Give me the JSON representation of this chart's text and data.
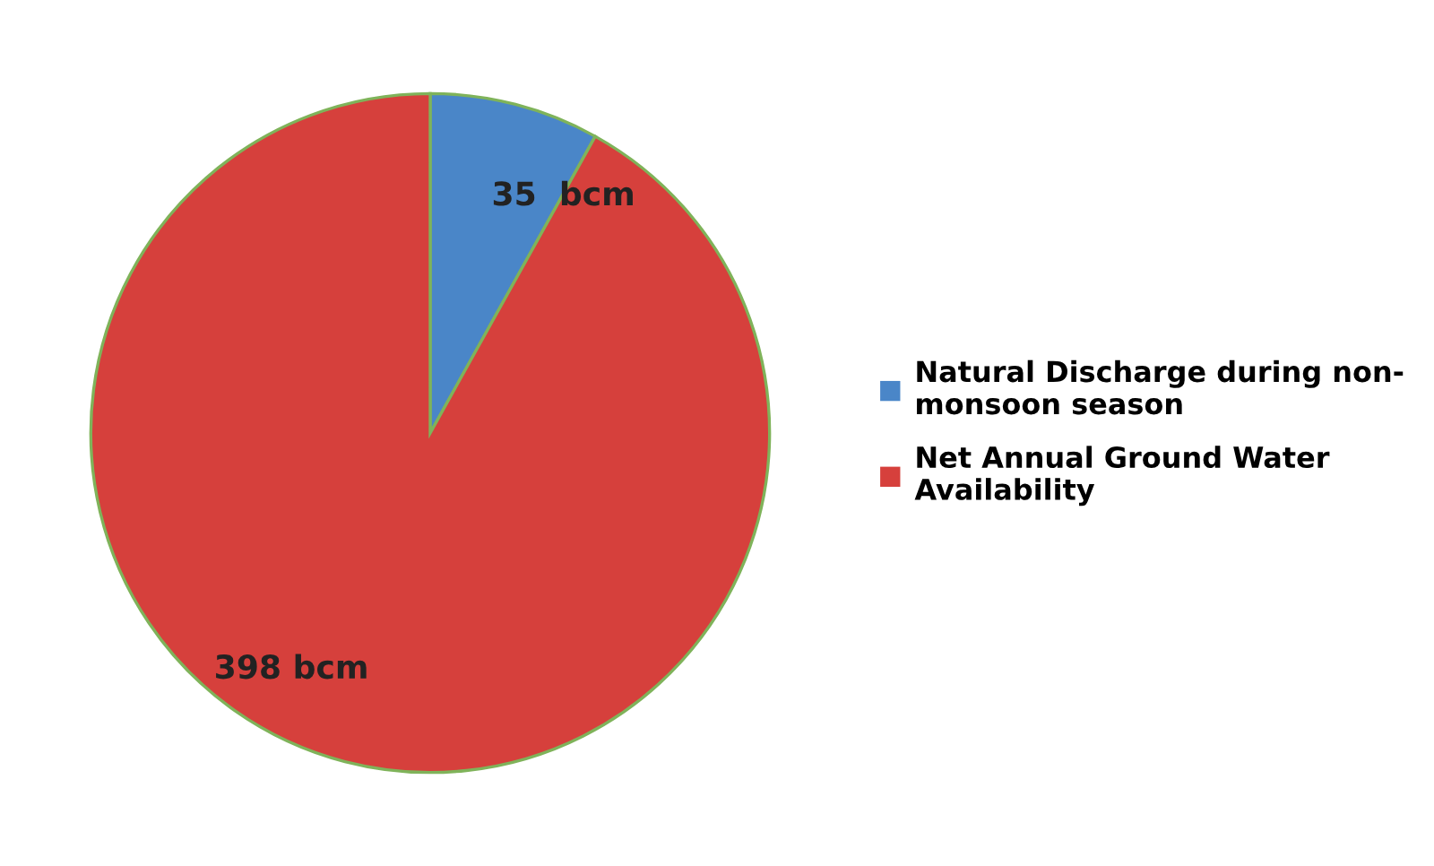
{
  "chart_data": {
    "type": "pie",
    "categories": [
      "Natural Discharge during non-monsoon season",
      "Net Annual Ground Water Availability"
    ],
    "values": [
      35,
      398
    ],
    "value_labels": [
      "35  bcm",
      "398 bcm"
    ],
    "colors": [
      "#4a86c8",
      "#d6403c"
    ],
    "legend": "right"
  }
}
